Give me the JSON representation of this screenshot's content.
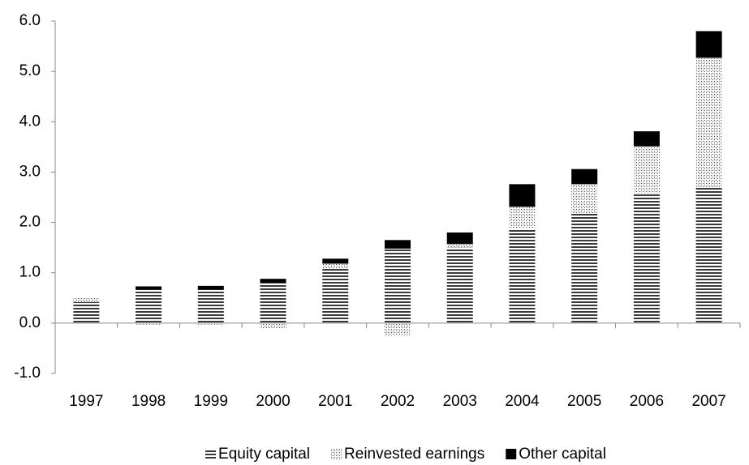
{
  "chart_data": {
    "type": "stacked-bar",
    "categories": [
      "1997",
      "1998",
      "1999",
      "2000",
      "2001",
      "2002",
      "2003",
      "2004",
      "2005",
      "2006",
      "2007"
    ],
    "series": [
      {
        "name": "Equity capital",
        "color": "#333333",
        "pattern": "horizontal-lines",
        "values": [
          0.42,
          0.66,
          0.66,
          0.8,
          1.08,
          1.48,
          1.5,
          1.88,
          2.18,
          2.58,
          2.7
        ]
      },
      {
        "name": "Reinvested earnings",
        "color": "#555555",
        "pattern": "dots",
        "values": [
          0.08,
          -0.03,
          -0.03,
          -0.1,
          0.1,
          -0.25,
          0.07,
          0.43,
          0.58,
          0.93,
          2.57
        ]
      },
      {
        "name": "Other capital",
        "color": "#000000",
        "pattern": "solid",
        "values": [
          0.0,
          0.07,
          0.08,
          0.08,
          0.1,
          0.17,
          0.23,
          0.45,
          0.3,
          0.3,
          0.53
        ]
      }
    ],
    "ylim": [
      -1,
      6
    ],
    "yticks": [
      {
        "value": -1,
        "label": "-1.0"
      },
      {
        "value": 0,
        "label": "0.0"
      },
      {
        "value": 1,
        "label": "1.0"
      },
      {
        "value": 2,
        "label": "2.0"
      },
      {
        "value": 3,
        "label": "3.0"
      },
      {
        "value": 4,
        "label": "4.0"
      },
      {
        "value": 5,
        "label": "5.0"
      },
      {
        "value": 6,
        "label": "6.0"
      }
    ],
    "grid": false,
    "legend": "bottom"
  }
}
